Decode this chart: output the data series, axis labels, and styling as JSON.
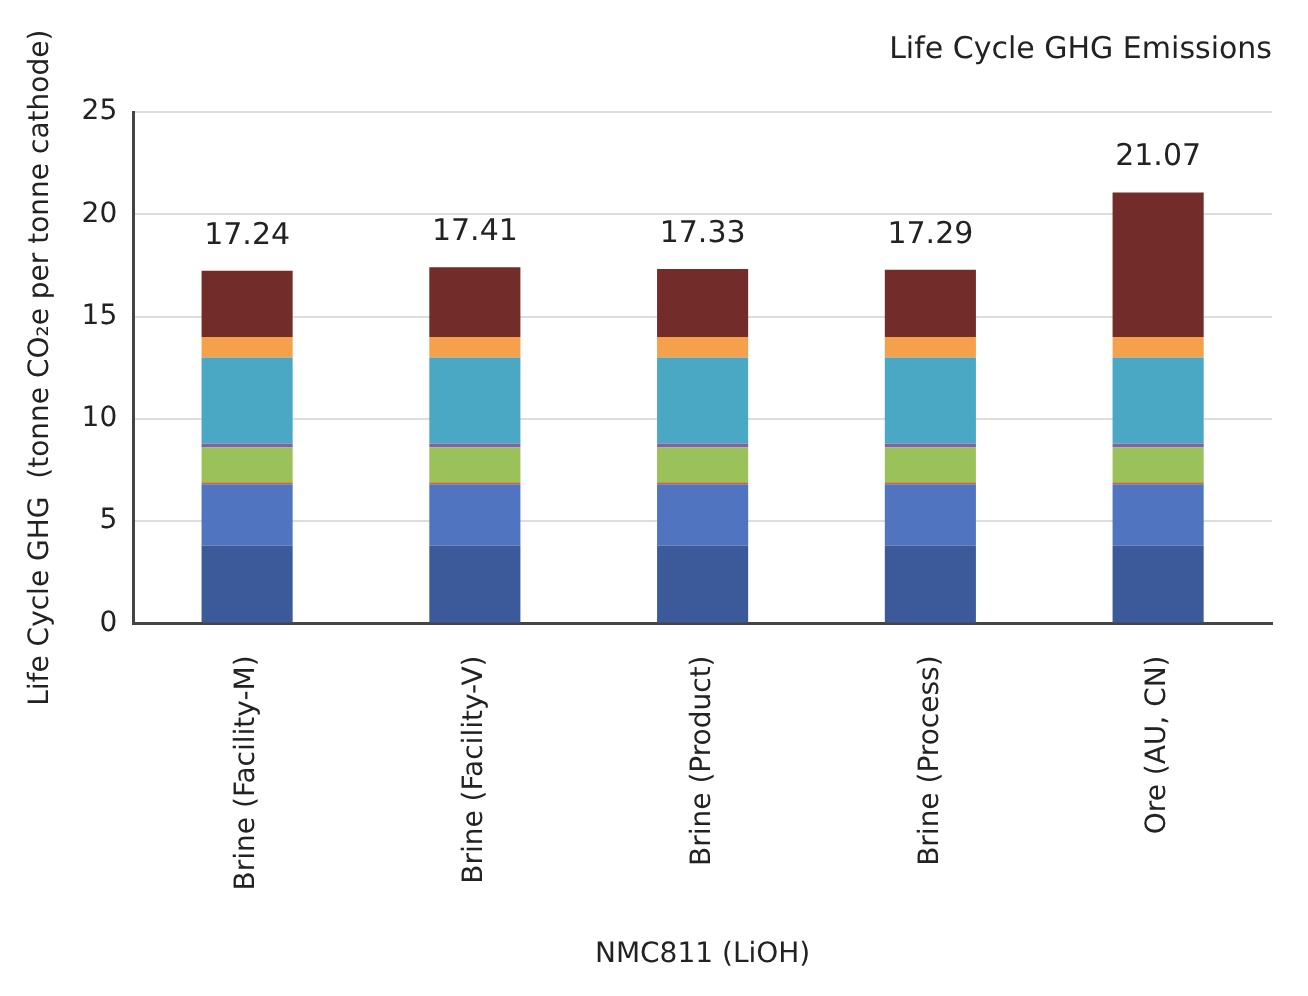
{
  "chart_data": {
    "type": "bar",
    "title": "Life Cycle GHG Emissions",
    "xlabel": "NMC811 (LiOH)",
    "ylabel": "Life Cycle GHG  (tonne CO₂e per tonne cathode)",
    "categories": [
      "Brine (Facility-M)",
      "Brine (Facility-V)",
      "Brine (Product)",
      "Brine (Process)",
      "Ore (AU, CN)"
    ],
    "stacked": true,
    "series": [
      {
        "color": "#3c5a99",
        "values": [
          3.8,
          3.8,
          3.8,
          3.8,
          3.8
        ]
      },
      {
        "color": "#5074c0",
        "values": [
          3.0,
          3.0,
          3.0,
          3.0,
          3.0
        ]
      },
      {
        "color": "#c0703a",
        "values": [
          0.1,
          0.1,
          0.1,
          0.1,
          0.1
        ]
      },
      {
        "color": "#9bc15a",
        "values": [
          1.7,
          1.7,
          1.7,
          1.7,
          1.7
        ]
      },
      {
        "color": "#8064a2",
        "values": [
          0.2,
          0.2,
          0.2,
          0.2,
          0.2
        ]
      },
      {
        "color": "#4aa8c4",
        "values": [
          4.2,
          4.2,
          4.2,
          4.2,
          4.2
        ]
      },
      {
        "color": "#f5a04a",
        "values": [
          1.0,
          1.0,
          1.0,
          1.0,
          1.0
        ]
      },
      {
        "color": "#722c2a",
        "values": [
          3.24,
          3.41,
          3.33,
          3.29,
          7.07
        ]
      }
    ],
    "totals": [
      "17.24",
      "17.41",
      "17.33",
      "17.29",
      "21.07"
    ],
    "ylim": [
      0,
      25
    ],
    "yticks": [
      0,
      5,
      10,
      15,
      20,
      25
    ],
    "grid": "y",
    "legend": false
  }
}
